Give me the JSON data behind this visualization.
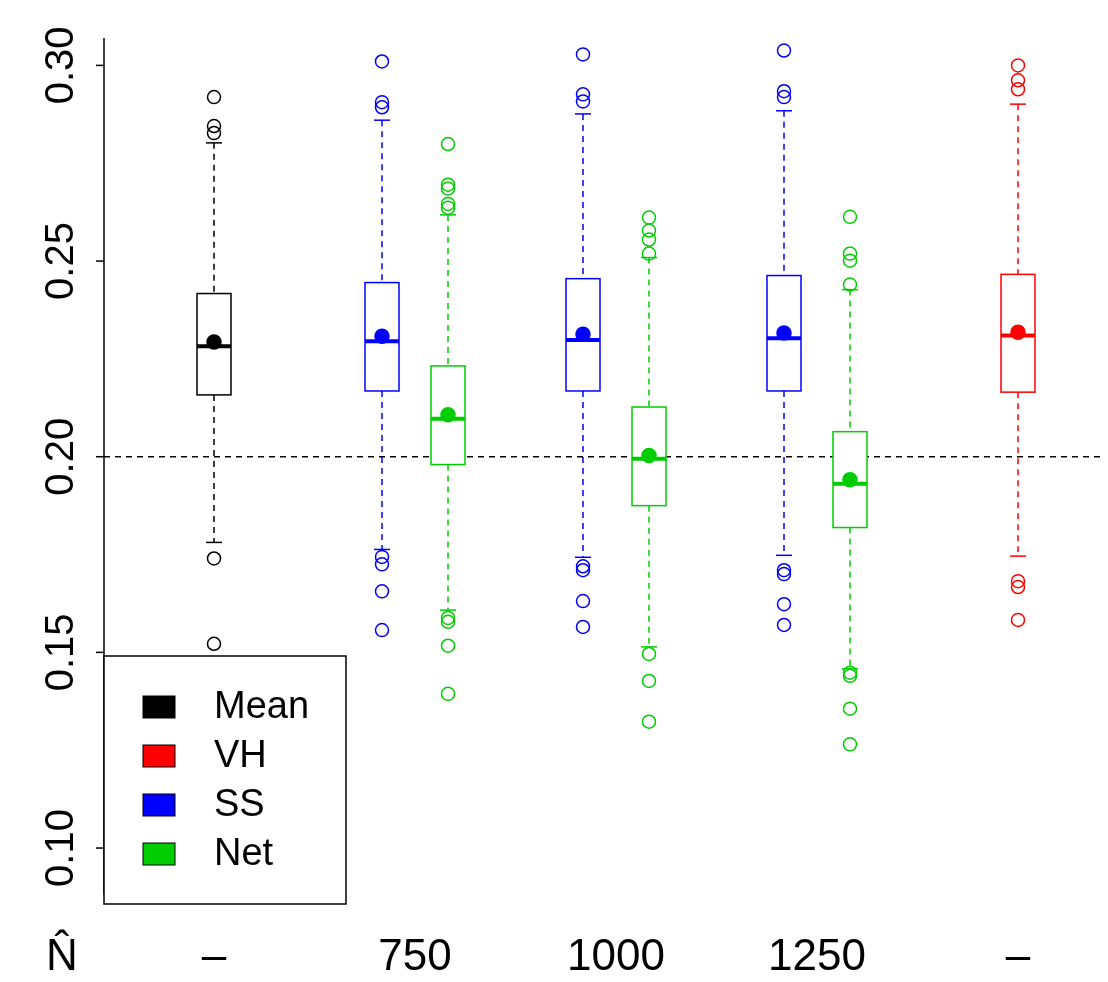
{
  "chart_data": {
    "type": "box",
    "xlabel": "N̂",
    "categories": [
      "–",
      "750",
      "1000",
      "1250",
      "–"
    ],
    "series": [
      {
        "name": "Mean",
        "color": "#000000",
        "boxes": [
          {
            "low": 0.1781,
            "q1": 0.2158,
            "median": 0.2282,
            "q3": 0.2417,
            "high": 0.2802,
            "mean": 0.2293,
            "outliers": [
              0.2919,
              0.2845,
              0.2827,
              0.174,
              0.1522
            ]
          },
          null,
          null,
          null,
          null
        ]
      },
      {
        "name": "VH",
        "color": "#ff0000",
        "boxes": [
          null,
          null,
          null,
          null,
          {
            "low": 0.1746,
            "q1": 0.2165,
            "median": 0.231,
            "q3": 0.2466,
            "high": 0.2901,
            "mean": 0.2318,
            "outliers": [
              0.3,
              0.2962,
              0.2939,
              0.1682,
              0.1667,
              0.1583
            ]
          }
        ]
      },
      {
        "name": "SS",
        "color": "#0000ff",
        "boxes": [
          null,
          {
            "low": 0.1763,
            "q1": 0.2168,
            "median": 0.2295,
            "q3": 0.2445,
            "high": 0.286,
            "mean": 0.2308,
            "outliers": [
              0.301,
              0.2906,
              0.2893,
              0.1744,
              0.1725,
              0.1656,
              0.1557
            ]
          },
          {
            "low": 0.1743,
            "q1": 0.2168,
            "median": 0.2298,
            "q3": 0.2455,
            "high": 0.2876,
            "mean": 0.2313,
            "outliers": [
              0.3028,
              0.2926,
              0.2908,
              0.172,
              0.171,
              0.1631,
              0.1565
            ]
          },
          {
            "low": 0.1748,
            "q1": 0.2168,
            "median": 0.2303,
            "q3": 0.2463,
            "high": 0.2884,
            "mean": 0.2316,
            "outliers": [
              0.3038,
              0.2934,
              0.2919,
              0.171,
              0.17,
              0.1623,
              0.157
            ]
          },
          null
        ]
      },
      {
        "name": "Net",
        "color": "#00cd00",
        "boxes": [
          null,
          {
            "low": 0.1608,
            "q1": 0.198,
            "median": 0.2097,
            "q3": 0.2232,
            "high": 0.2618,
            "mean": 0.2107,
            "outliers": [
              0.2799,
              0.2695,
              0.2685,
              0.2646,
              0.2636,
              0.1588,
              0.1578,
              0.1517,
              0.1394
            ]
          },
          {
            "low": 0.1514,
            "q1": 0.1875,
            "median": 0.1995,
            "q3": 0.2127,
            "high": 0.2509,
            "mean": 0.2003,
            "outliers": [
              0.2611,
              0.2578,
              0.2555,
              0.2519,
              0.1496,
              0.1427,
              0.1323
            ]
          },
          {
            "low": 0.1458,
            "q1": 0.1819,
            "median": 0.1931,
            "q3": 0.2064,
            "high": 0.2427,
            "mean": 0.1941,
            "outliers": [
              0.2613,
              0.2519,
              0.2501,
              0.244,
              0.1448,
              0.144,
              0.1356,
              0.1265
            ]
          },
          null
        ]
      }
    ],
    "ylim": [
      0.088,
      0.307
    ],
    "yticks": [
      {
        "value": 0.1,
        "label": "0.10"
      },
      0.15,
      {
        "value": 0.2,
        "label": "0.20"
      },
      0.25,
      {
        "value": 0.3,
        "label": "0.30"
      }
    ],
    "ref_lines": [
      {
        "axis": "y",
        "value": 0.2,
        "color": "#000000",
        "line_style": "dashed"
      }
    ],
    "marker": "circle",
    "legend": "bottom left",
    "grid": false
  }
}
